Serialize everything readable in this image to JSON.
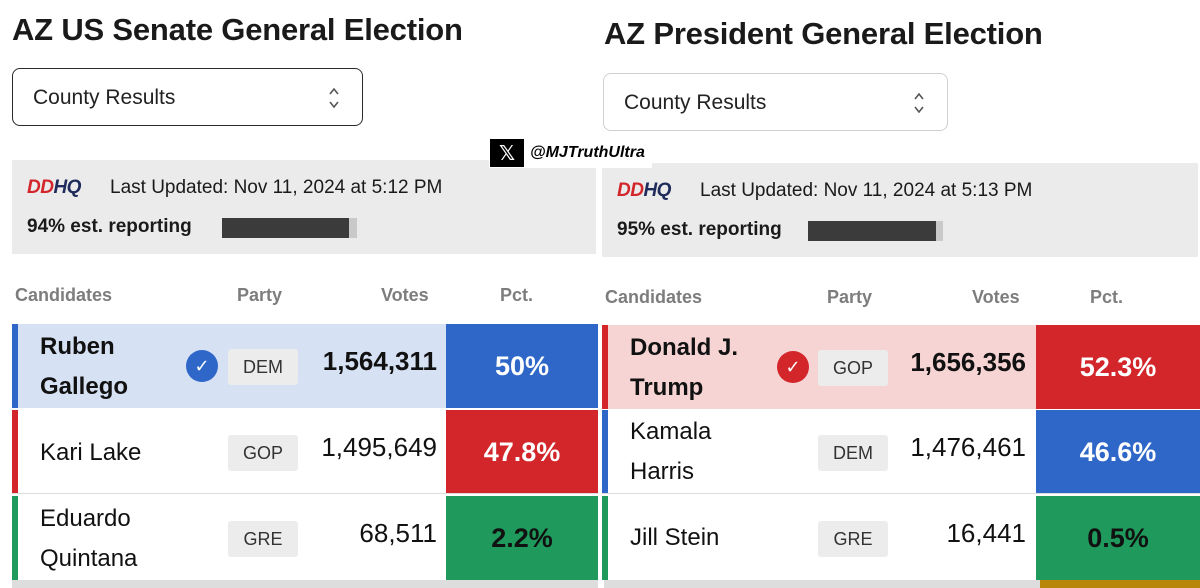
{
  "watermark": {
    "x_glyph": "𝕏",
    "handle": "@MJTruthUltra"
  },
  "senate": {
    "title": "AZ US Senate General Election",
    "select_value": "County Results",
    "logo_a": "DD",
    "logo_b": "HQ",
    "last_updated": "Last Updated: Nov 11, 2024 at 5:12 PM",
    "reporting": "94% est. reporting",
    "reporting_fraction": 0.94,
    "headers": {
      "candidates": "Candidates",
      "party": "Party",
      "votes": "Votes",
      "pct": "Pct."
    },
    "rows": [
      {
        "name_line1": "Ruben",
        "name_line2": "Gallego",
        "party": "DEM",
        "votes": "1,564,311",
        "pct": "50%",
        "winner": true
      },
      {
        "name_line1": "Kari Lake",
        "name_line2": "",
        "party": "GOP",
        "votes": "1,495,649",
        "pct": "47.8%",
        "winner": false
      },
      {
        "name_line1": "Eduardo",
        "name_line2": "Quintana",
        "party": "GRE",
        "votes": "68,511",
        "pct": "2.2%",
        "winner": false
      }
    ]
  },
  "president": {
    "title": "AZ President General Election",
    "select_value": "County Results",
    "logo_a": "DD",
    "logo_b": "HQ",
    "last_updated": "Last Updated: Nov 11, 2024 at 5:13 PM",
    "reporting": "95% est. reporting",
    "reporting_fraction": 0.95,
    "headers": {
      "candidates": "Candidates",
      "party": "Party",
      "votes": "Votes",
      "pct": "Pct."
    },
    "rows": [
      {
        "name_line1": "Donald J.",
        "name_line2": "Trump",
        "party": "GOP",
        "votes": "1,656,356",
        "pct": "52.3%",
        "winner": true
      },
      {
        "name_line1": "Kamala",
        "name_line2": "Harris",
        "party": "DEM",
        "votes": "1,476,461",
        "pct": "46.6%",
        "winner": false
      },
      {
        "name_line1": "Jill Stein",
        "name_line2": "",
        "party": "GRE",
        "votes": "16,441",
        "pct": "0.5%",
        "winner": false
      }
    ]
  },
  "colors": {
    "dem": "#2f67c9",
    "gop": "#d3262b",
    "gre": "#1f9a5c",
    "dem_winner_bg": "#d6e1f3",
    "gop_winner_bg": "#f6d4d4",
    "check_dem": "#2f67c9",
    "check_gop": "#d3262b"
  }
}
